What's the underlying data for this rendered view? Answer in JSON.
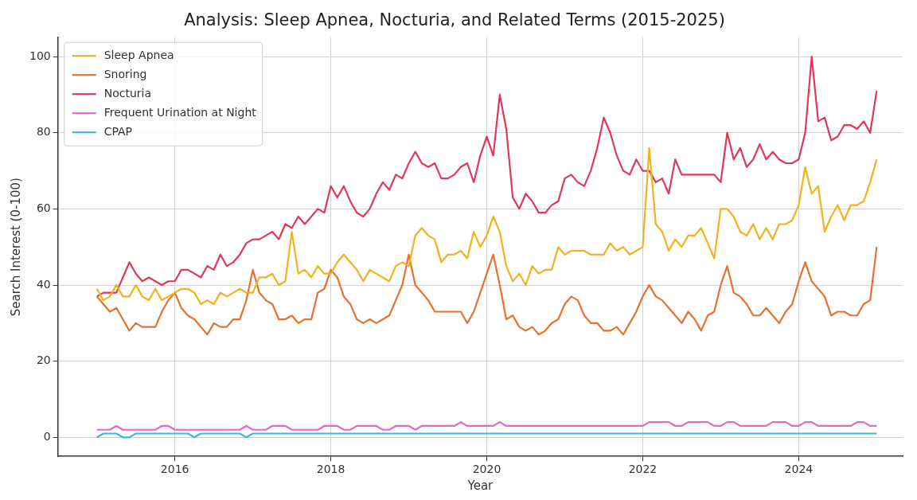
{
  "chart_data": {
    "type": "line",
    "title": "Analysis: Sleep Apnea, Nocturia, and Related Terms (2015-2025)",
    "xlabel": "Year",
    "ylabel": "Search Interest (0-100)",
    "x": [
      "2015-01",
      "2015-02",
      "2015-03",
      "2015-04",
      "2015-05",
      "2015-06",
      "2015-07",
      "2015-08",
      "2015-09",
      "2015-10",
      "2015-11",
      "2015-12",
      "2016-01",
      "2016-02",
      "2016-03",
      "2016-04",
      "2016-05",
      "2016-06",
      "2016-07",
      "2016-08",
      "2016-09",
      "2016-10",
      "2016-11",
      "2016-12",
      "2017-01",
      "2017-02",
      "2017-03",
      "2017-04",
      "2017-05",
      "2017-06",
      "2017-07",
      "2017-08",
      "2017-09",
      "2017-10",
      "2017-11",
      "2017-12",
      "2018-01",
      "2018-02",
      "2018-03",
      "2018-04",
      "2018-05",
      "2018-06",
      "2018-07",
      "2018-08",
      "2018-09",
      "2018-10",
      "2018-11",
      "2018-12",
      "2019-01",
      "2019-02",
      "2019-03",
      "2019-04",
      "2019-05",
      "2019-06",
      "2019-07",
      "2019-08",
      "2019-09",
      "2019-10",
      "2019-11",
      "2019-12",
      "2020-01",
      "2020-02",
      "2020-03",
      "2020-04",
      "2020-05",
      "2020-06",
      "2020-07",
      "2020-08",
      "2020-09",
      "2020-10",
      "2020-11",
      "2020-12",
      "2021-01",
      "2021-02",
      "2021-03",
      "2021-04",
      "2021-05",
      "2021-06",
      "2021-07",
      "2021-08",
      "2021-09",
      "2021-10",
      "2021-11",
      "2021-12",
      "2022-01",
      "2022-02",
      "2022-03",
      "2022-04",
      "2022-05",
      "2022-06",
      "2022-07",
      "2022-08",
      "2022-09",
      "2022-10",
      "2022-11",
      "2022-12",
      "2023-01",
      "2023-02",
      "2023-03",
      "2023-04",
      "2023-05",
      "2023-06",
      "2023-07",
      "2023-08",
      "2023-09",
      "2023-10",
      "2023-11",
      "2023-12",
      "2024-01",
      "2024-02",
      "2024-03",
      "2024-04",
      "2024-05",
      "2024-06",
      "2024-07",
      "2024-08",
      "2024-09",
      "2024-10",
      "2024-11",
      "2024-12",
      "2025-01"
    ],
    "series": [
      {
        "name": "Sleep Apnea",
        "color": "#f2b11e",
        "values": [
          39,
          36,
          37,
          40,
          37,
          37,
          40,
          37,
          36,
          39,
          36,
          37,
          38,
          39,
          39,
          38,
          35,
          36,
          35,
          38,
          37,
          38,
          39,
          38,
          38,
          42,
          42,
          43,
          40,
          41,
          54,
          43,
          44,
          42,
          45,
          43,
          43,
          46,
          48,
          46,
          44,
          41,
          44,
          43,
          42,
          41,
          45,
          46,
          45,
          53,
          55,
          53,
          52,
          46,
          48,
          48,
          49,
          47,
          54,
          50,
          53,
          58,
          54,
          45,
          41,
          43,
          40,
          45,
          43,
          44,
          44,
          50,
          48,
          49,
          49,
          49,
          48,
          48,
          48,
          51,
          49,
          50,
          48,
          49,
          50,
          76,
          56,
          54,
          49,
          52,
          50,
          53,
          53,
          55,
          51,
          47,
          60,
          60,
          58,
          54,
          53,
          56,
          52,
          55,
          52,
          56,
          56,
          57,
          61,
          71,
          64,
          66,
          54,
          58,
          61,
          57,
          61,
          61,
          62,
          67,
          73
        ]
      },
      {
        "name": "Snoring",
        "color": "#e4722e",
        "values": [
          37,
          35,
          33,
          34,
          31,
          28,
          30,
          29,
          29,
          29,
          33,
          36,
          38,
          34,
          32,
          31,
          29,
          27,
          30,
          29,
          29,
          31,
          31,
          36,
          44,
          38,
          36,
          35,
          31,
          31,
          32,
          30,
          31,
          31,
          38,
          39,
          44,
          42,
          37,
          35,
          31,
          30,
          31,
          30,
          31,
          32,
          36,
          40,
          48,
          40,
          38,
          36,
          33,
          33,
          33,
          33,
          33,
          30,
          33,
          38,
          43,
          48,
          40,
          31,
          32,
          29,
          28,
          29,
          27,
          28,
          30,
          31,
          35,
          37,
          36,
          32,
          30,
          30,
          28,
          28,
          29,
          27,
          30,
          33,
          37,
          40,
          37,
          36,
          34,
          32,
          30,
          33,
          31,
          28,
          32,
          33,
          40,
          45,
          38,
          37,
          35,
          32,
          32,
          34,
          32,
          30,
          33,
          35,
          41,
          46,
          41,
          39,
          37,
          32,
          33,
          33,
          32,
          32,
          35,
          36,
          50
        ]
      },
      {
        "name": "Nocturia",
        "color": "#e0385a",
        "values": [
          37,
          38,
          38,
          38,
          42,
          46,
          43,
          41,
          42,
          41,
          40,
          41,
          41,
          44,
          44,
          43,
          42,
          45,
          44,
          48,
          45,
          46,
          48,
          51,
          52,
          52,
          53,
          54,
          52,
          56,
          55,
          58,
          56,
          58,
          60,
          59,
          66,
          63,
          66,
          62,
          59,
          58,
          60,
          64,
          67,
          65,
          69,
          68,
          72,
          75,
          72,
          71,
          72,
          68,
          68,
          69,
          71,
          72,
          67,
          74,
          79,
          74,
          90,
          81,
          63,
          60,
          64,
          62,
          59,
          59,
          61,
          62,
          68,
          69,
          67,
          66,
          70,
          76,
          84,
          80,
          74,
          70,
          69,
          73,
          70,
          70,
          67,
          68,
          64,
          73,
          69,
          69,
          69,
          69,
          69,
          69,
          67,
          80,
          73,
          76,
          71,
          73,
          77,
          73,
          75,
          73,
          72,
          72,
          73,
          80,
          100,
          83,
          84,
          78,
          79,
          82,
          82,
          81,
          83,
          80,
          91
        ]
      },
      {
        "name": "Frequent Urination at Night",
        "color": "#e467c9",
        "values": [
          2,
          2,
          2,
          3,
          2,
          2,
          2,
          2,
          2,
          2,
          3,
          3,
          2,
          2,
          2,
          2,
          2,
          2,
          2,
          2,
          2,
          2,
          2,
          3,
          2,
          2,
          2,
          3,
          3,
          3,
          2,
          2,
          2,
          2,
          2,
          3,
          3,
          3,
          2,
          2,
          3,
          3,
          3,
          3,
          2,
          2,
          3,
          3,
          3,
          2,
          3,
          3,
          3,
          3,
          3,
          3,
          4,
          3,
          3,
          3,
          3,
          3,
          4,
          3,
          3,
          3,
          3,
          3,
          3,
          3,
          3,
          3,
          3,
          3,
          3,
          3,
          3,
          3,
          3,
          3,
          3,
          3,
          3,
          3,
          3,
          4,
          4,
          4,
          4,
          3,
          3,
          4,
          4,
          4,
          4,
          3,
          3,
          4,
          4,
          3,
          3,
          3,
          3,
          3,
          4,
          4,
          4,
          3,
          3,
          4,
          4,
          3,
          3,
          3,
          3,
          3,
          3,
          4,
          4,
          3,
          3
        ]
      },
      {
        "name": "CPAP",
        "color": "#3bb6ec",
        "values": [
          0,
          1,
          1,
          1,
          0,
          0,
          1,
          1,
          1,
          1,
          1,
          1,
          1,
          1,
          1,
          0,
          1,
          1,
          1,
          1,
          1,
          1,
          1,
          0,
          1,
          1,
          1,
          1,
          1,
          1,
          1,
          1,
          1,
          1,
          1,
          1,
          1,
          1,
          1,
          1,
          1,
          1,
          1,
          1,
          1,
          1,
          1,
          1,
          1,
          1,
          1,
          1,
          1,
          1,
          1,
          1,
          1,
          1,
          1,
          1,
          1,
          1,
          1,
          1,
          1,
          1,
          1,
          1,
          1,
          1,
          1,
          1,
          1,
          1,
          1,
          1,
          1,
          1,
          1,
          1,
          1,
          1,
          1,
          1,
          1,
          1,
          1,
          1,
          1,
          1,
          1,
          1,
          1,
          1,
          1,
          1,
          1,
          1,
          1,
          1,
          1,
          1,
          1,
          1,
          1,
          1,
          1,
          1,
          1,
          1,
          1,
          1,
          1,
          1,
          1,
          1,
          1,
          1,
          1,
          1,
          1
        ]
      }
    ],
    "xlim": [
      "2014-07",
      "2025-05"
    ],
    "xticks": [
      "2016",
      "2018",
      "2020",
      "2022",
      "2024"
    ],
    "ylim": [
      -5,
      105
    ],
    "yticks": [
      0,
      20,
      40,
      60,
      80,
      100
    ],
    "grid": true,
    "legend": "top left",
    "marker": "none",
    "line_style": "solid"
  }
}
